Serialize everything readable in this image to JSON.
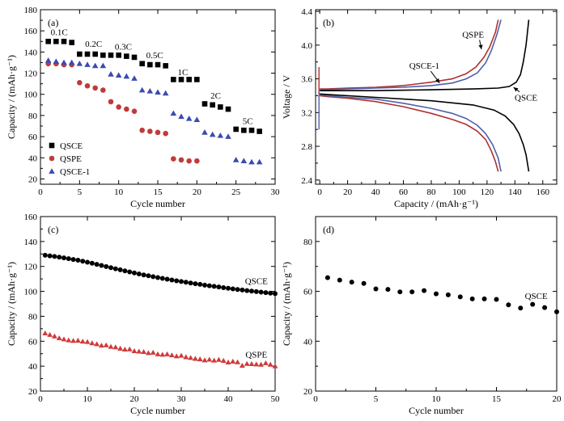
{
  "chart_data": [
    {
      "panel": "(a)",
      "type": "scatter",
      "xlabel": "Cycle number",
      "ylabel": "Capacity / (mAh·g⁻¹)",
      "xlim": [
        0,
        30
      ],
      "ylim": [
        15,
        180
      ],
      "xticks": [
        0,
        5,
        10,
        15,
        20,
        25,
        30
      ],
      "yticks": [
        20,
        40,
        60,
        80,
        100,
        120,
        140,
        160,
        180
      ],
      "legend_position": "bottom-left",
      "annotations": [
        {
          "text": "0.1C",
          "x": 2.4,
          "y": 156
        },
        {
          "text": "0.2C",
          "x": 6.8,
          "y": 145
        },
        {
          "text": "0.3C",
          "x": 10.6,
          "y": 142
        },
        {
          "text": "0.5C",
          "x": 14.6,
          "y": 134
        },
        {
          "text": "1C",
          "x": 18.2,
          "y": 118
        },
        {
          "text": "2C",
          "x": 22.4,
          "y": 96
        },
        {
          "text": "5C",
          "x": 26.5,
          "y": 72
        }
      ],
      "series": [
        {
          "name": "QSCE",
          "marker": "square",
          "color": "#000000",
          "x": [
            1,
            2,
            3,
            4,
            5,
            6,
            7,
            8,
            9,
            10,
            11,
            12,
            13,
            14,
            15,
            16,
            17,
            18,
            19,
            20,
            21,
            22,
            23,
            24,
            25,
            26,
            27,
            28
          ],
          "y": [
            150,
            150,
            150,
            149,
            138,
            138,
            138,
            137,
            137,
            137,
            136,
            135,
            129,
            128,
            128,
            127,
            114,
            114,
            114,
            114,
            91,
            90,
            88,
            86,
            67,
            66,
            66,
            65
          ]
        },
        {
          "name": "QSPE",
          "marker": "circle",
          "color": "#c03a3a",
          "x": [
            1,
            2,
            3,
            4,
            5,
            6,
            7,
            8,
            9,
            10,
            11,
            12,
            13,
            14,
            15,
            16,
            17,
            18,
            19,
            20
          ],
          "y": [
            129,
            129,
            128,
            128,
            111,
            108,
            106,
            104,
            93,
            88,
            86,
            84,
            66,
            65,
            64,
            63,
            39,
            38,
            37,
            37
          ]
        },
        {
          "name": "QSCE-1",
          "marker": "triangle",
          "color": "#3a4bb0",
          "x": [
            1,
            2,
            3,
            4,
            5,
            6,
            7,
            8,
            9,
            10,
            11,
            12,
            13,
            14,
            15,
            16,
            17,
            18,
            19,
            20,
            21,
            22,
            23,
            24,
            25,
            26,
            27,
            28
          ],
          "y": [
            132,
            131,
            130,
            130,
            129,
            128,
            127,
            127,
            119,
            118,
            117,
            115,
            104,
            103,
            102,
            101,
            82,
            79,
            77,
            76,
            64,
            62,
            61,
            60,
            38,
            37,
            36,
            36
          ]
        }
      ]
    },
    {
      "panel": "(b)",
      "type": "line",
      "xlabel": "Capacity / (mAh·g⁻¹)",
      "ylabel": "Voltage / V",
      "xlim": [
        -3,
        170
      ],
      "ylim": [
        2.35,
        4.42
      ],
      "xticks": [
        0,
        20,
        40,
        60,
        80,
        100,
        120,
        140,
        160
      ],
      "yticks": [
        2.4,
        2.8,
        3.2,
        3.6,
        4.0,
        4.4
      ],
      "callouts": [
        {
          "text": "QSPE",
          "label_x": 110,
          "label_y": 4.09,
          "target_x": 116,
          "target_y": 3.95
        },
        {
          "text": "QSCE-1",
          "label_x": 75,
          "label_y": 3.72,
          "target_x": 86,
          "target_y": 3.55
        },
        {
          "text": "QSCE",
          "label_x": 148,
          "label_y": 3.34,
          "target_x": 139,
          "target_y": 3.5
        }
      ],
      "series": [
        {
          "name": "QSPE",
          "color": "#b03030",
          "charge": [
            [
              0,
              3.48
            ],
            [
              5,
              3.48
            ],
            [
              20,
              3.49
            ],
            [
              40,
              3.5
            ],
            [
              60,
              3.52
            ],
            [
              80,
              3.56
            ],
            [
              95,
              3.6
            ],
            [
              105,
              3.66
            ],
            [
              112,
              3.74
            ],
            [
              118,
              3.86
            ],
            [
              122,
              3.98
            ],
            [
              126,
              4.15
            ],
            [
              128,
              4.3
            ]
          ],
          "discharge": [
            [
              0,
              3.4
            ],
            [
              5,
              3.39
            ],
            [
              20,
              3.37
            ],
            [
              40,
              3.33
            ],
            [
              60,
              3.27
            ],
            [
              80,
              3.19
            ],
            [
              95,
              3.12
            ],
            [
              105,
              3.06
            ],
            [
              113,
              2.98
            ],
            [
              119,
              2.88
            ],
            [
              123,
              2.75
            ],
            [
              126,
              2.62
            ],
            [
              128,
              2.5
            ]
          ]
        },
        {
          "name": "QSCE-1",
          "color": "#5060a8",
          "charge": [
            [
              0,
              3.47
            ],
            [
              5,
              3.47
            ],
            [
              20,
              3.48
            ],
            [
              40,
              3.49
            ],
            [
              60,
              3.5
            ],
            [
              80,
              3.52
            ],
            [
              95,
              3.55
            ],
            [
              105,
              3.6
            ],
            [
              113,
              3.67
            ],
            [
              119,
              3.79
            ],
            [
              123,
              3.93
            ],
            [
              127,
              4.12
            ],
            [
              130,
              4.3
            ]
          ],
          "discharge": [
            [
              0,
              3.41
            ],
            [
              5,
              3.4
            ],
            [
              20,
              3.38
            ],
            [
              40,
              3.36
            ],
            [
              60,
              3.31
            ],
            [
              80,
              3.25
            ],
            [
              95,
              3.19
            ],
            [
              105,
              3.13
            ],
            [
              113,
              3.05
            ],
            [
              119,
              2.95
            ],
            [
              124,
              2.82
            ],
            [
              128,
              2.66
            ],
            [
              130,
              2.5
            ]
          ]
        },
        {
          "name": "QSCE",
          "color": "#000000",
          "charge": [
            [
              0,
              3.46
            ],
            [
              10,
              3.46
            ],
            [
              40,
              3.46
            ],
            [
              80,
              3.47
            ],
            [
              110,
              3.48
            ],
            [
              128,
              3.49
            ],
            [
              136,
              3.51
            ],
            [
              141,
              3.56
            ],
            [
              144,
              3.65
            ],
            [
              146,
              3.8
            ],
            [
              148,
              4.0
            ],
            [
              149,
              4.15
            ],
            [
              150,
              4.3
            ]
          ],
          "discharge": [
            [
              0,
              3.42
            ],
            [
              10,
              3.41
            ],
            [
              40,
              3.38
            ],
            [
              80,
              3.34
            ],
            [
              110,
              3.29
            ],
            [
              125,
              3.23
            ],
            [
              133,
              3.16
            ],
            [
              139,
              3.06
            ],
            [
              143,
              2.95
            ],
            [
              146,
              2.82
            ],
            [
              148,
              2.7
            ],
            [
              149,
              2.6
            ],
            [
              150,
              2.5
            ]
          ]
        }
      ],
      "start_spike": [
        [
          0,
          3.4
        ],
        [
          0,
          3.74
        ],
        [
          0,
          3.46
        ]
      ],
      "start_dip": [
        [
          0,
          3.42
        ],
        [
          0,
          3.0
        ]
      ]
    },
    {
      "panel": "(c)",
      "type": "scatter",
      "xlabel": "Cycle number",
      "ylabel": "Capacity / (mAh·g⁻¹)",
      "xlim": [
        0,
        50
      ],
      "ylim": [
        20,
        160
      ],
      "xticks": [
        0,
        10,
        20,
        30,
        40,
        50
      ],
      "yticks": [
        20,
        40,
        60,
        80,
        100,
        120,
        140,
        160
      ],
      "series": [
        {
          "name": "QSCE",
          "marker": "circle",
          "color": "#000000",
          "x": [
            1,
            2,
            3,
            4,
            5,
            6,
            7,
            8,
            9,
            10,
            11,
            12,
            13,
            14,
            15,
            16,
            17,
            18,
            19,
            20,
            21,
            22,
            23,
            24,
            25,
            26,
            27,
            28,
            29,
            30,
            31,
            32,
            33,
            34,
            35,
            36,
            37,
            38,
            39,
            40,
            41,
            42,
            43,
            44,
            45,
            46,
            47,
            48,
            49,
            50
          ],
          "y": [
            129.0,
            128.5,
            128.0,
            127.4,
            126.9,
            126.2,
            125.6,
            125.0,
            124.2,
            123.4,
            122.6,
            121.7,
            120.8,
            119.9,
            119.0,
            118.1,
            117.3,
            116.4,
            115.6,
            114.8,
            114.0,
            113.2,
            112.5,
            111.8,
            111.1,
            110.4,
            109.8,
            109.1,
            108.5,
            107.9,
            107.3,
            106.7,
            106.1,
            105.6,
            105.0,
            104.5,
            104.0,
            103.5,
            103.0,
            102.5,
            102.0,
            101.5,
            101.1,
            100.6,
            100.2,
            99.8,
            99.4,
            99.0,
            98.6,
            98.2
          ]
        },
        {
          "name": "QSPE",
          "marker": "triangle",
          "color": "#d03a3a",
          "x": [
            1,
            2,
            3,
            4,
            5,
            6,
            7,
            8,
            9,
            10,
            11,
            12,
            13,
            14,
            15,
            16,
            17,
            18,
            19,
            20,
            21,
            22,
            23,
            24,
            25,
            26,
            27,
            28,
            29,
            30,
            31,
            32,
            33,
            34,
            35,
            36,
            37,
            38,
            39,
            40,
            41,
            42,
            43,
            44,
            45,
            46,
            47,
            48,
            49,
            50
          ],
          "y": [
            66.4,
            65.2,
            64.0,
            62.5,
            61.6,
            60.8,
            60.4,
            60.6,
            59.8,
            59.5,
            58.5,
            57.7,
            56.6,
            56.8,
            55.6,
            55.2,
            54.2,
            53.4,
            53.6,
            52.1,
            51.8,
            51.5,
            50.6,
            50.9,
            49.6,
            49.3,
            49.6,
            48.8,
            48.0,
            48.5,
            47.3,
            46.7,
            46.0,
            45.6,
            44.8,
            45.3,
            44.6,
            45.2,
            44.4,
            43.1,
            43.8,
            43.2,
            40.5,
            41.9,
            41.8,
            41.5,
            41.3,
            42.5,
            41.3,
            40.0
          ]
        }
      ]
    },
    {
      "panel": "(d)",
      "type": "scatter",
      "xlabel": "Cycle number",
      "ylabel": "Capacity / (mAh·g⁻¹)",
      "xlim": [
        0,
        20
      ],
      "ylim": [
        20,
        90
      ],
      "xticks": [
        0,
        5,
        10,
        15,
        20
      ],
      "yticks": [
        20,
        40,
        60,
        80
      ],
      "series": [
        {
          "name": "QSCE",
          "marker": "circle",
          "color": "#000000",
          "x": [
            1,
            2,
            3,
            4,
            5,
            6,
            7,
            8,
            9,
            10,
            11,
            12,
            13,
            14,
            15,
            16,
            17,
            18,
            19,
            20
          ],
          "y": [
            65.5,
            64.5,
            63.7,
            63.2,
            61.0,
            60.8,
            59.8,
            59.8,
            60.3,
            59.0,
            58.6,
            57.8,
            57.0,
            57.0,
            56.8,
            54.6,
            53.3,
            54.8,
            53.5,
            51.8
          ]
        }
      ]
    }
  ]
}
